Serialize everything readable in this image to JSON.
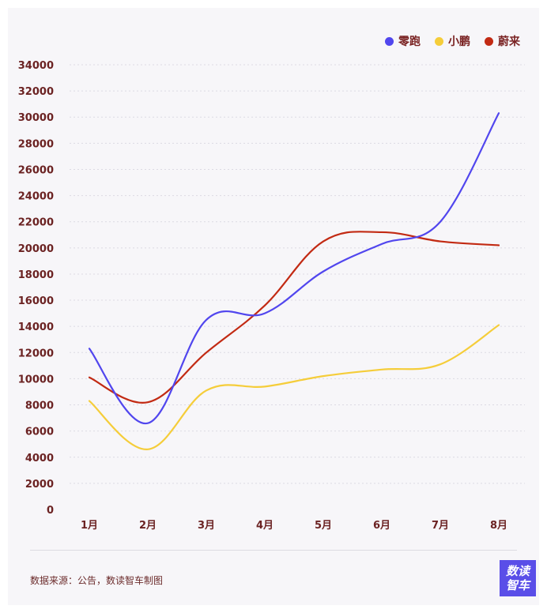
{
  "legend": [
    {
      "name": "零跑",
      "color": "#5146ee"
    },
    {
      "name": "小鹏",
      "color": "#f5cd3a"
    },
    {
      "name": "蔚来",
      "color": "#c22a13"
    }
  ],
  "chart_data": {
    "type": "line",
    "categories": [
      "1月",
      "2月",
      "3月",
      "4月",
      "5月",
      "6月",
      "7月",
      "8月"
    ],
    "series": [
      {
        "name": "零跑",
        "color": "#5146ee",
        "values": [
          12300,
          6600,
          14500,
          15000,
          18200,
          20300,
          22000,
          30300
        ]
      },
      {
        "name": "小鹏",
        "color": "#f5cd3a",
        "values": [
          8300,
          4600,
          9100,
          9400,
          10200,
          10700,
          11100,
          14100
        ]
      },
      {
        "name": "蔚来",
        "color": "#c22a13",
        "values": [
          10100,
          8200,
          12000,
          15600,
          20500,
          21200,
          20500,
          20200
        ]
      }
    ],
    "ylim": [
      0,
      34000
    ],
    "yticks": [
      "0",
      "2000",
      "4000",
      "6000",
      "8000",
      "10000",
      "12000",
      "14000",
      "16000",
      "18000",
      "20000",
      "22000",
      "24000",
      "26000",
      "28000",
      "30000",
      "32000",
      "34000"
    ],
    "grid": true,
    "legend_position": "top-right"
  },
  "footer": {
    "source": "数据来源：公告，数读智车制图",
    "logo_line1": "数读",
    "logo_line2": "智车"
  }
}
